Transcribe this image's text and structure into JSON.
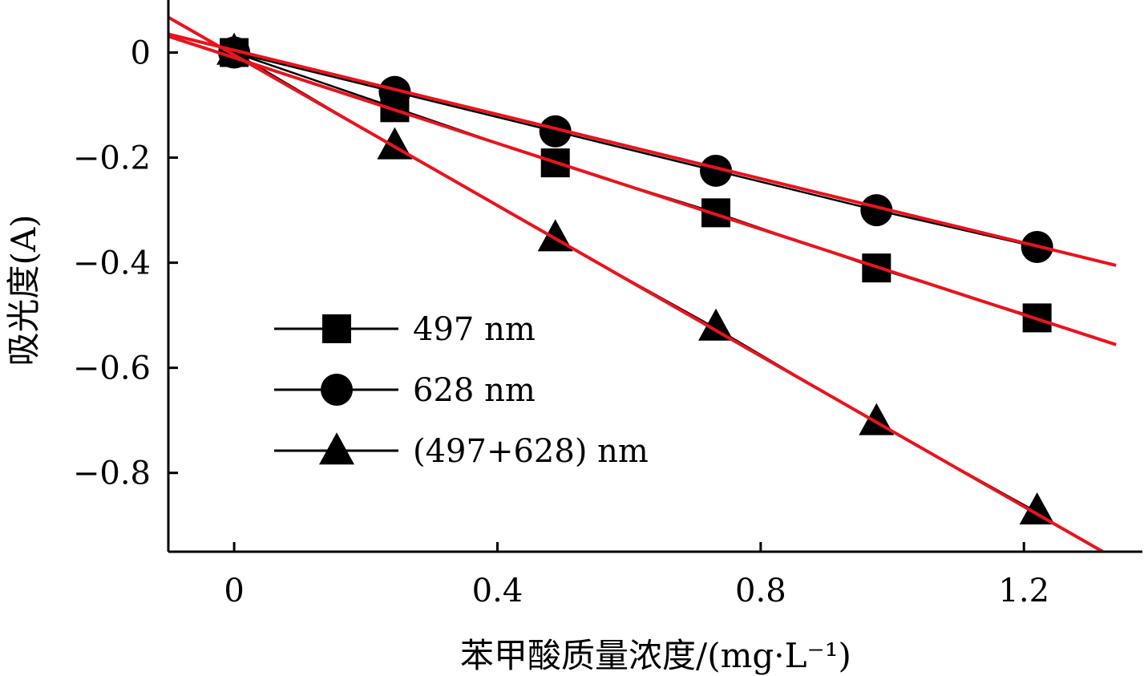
{
  "chart_data": {
    "type": "line",
    "xlabel": "苯甲酸质量浓度/(mg·L⁻¹)",
    "ylabel": "吸光度(A)",
    "xlim": [
      -0.1,
      1.38
    ],
    "ylim": [
      -0.95,
      0.1
    ],
    "x_ticks": [
      0,
      0.4,
      0.8,
      1.2
    ],
    "x_tick_labels": [
      "0",
      "0.4",
      "0.8",
      "1.2"
    ],
    "y_ticks": [
      0,
      -0.2,
      -0.4,
      -0.6,
      -0.8
    ],
    "y_tick_labels": [
      "0",
      "−0.2",
      "−0.4",
      "−0.6",
      "−0.8"
    ],
    "grid": false,
    "legend_position": "lower-left",
    "fit_line_color": "#e8141e",
    "marker_color": "#000000",
    "series": [
      {
        "name": "497 nm",
        "marker": "square",
        "x": [
          0,
          0.244,
          0.488,
          0.732,
          0.976,
          1.22
        ],
        "y": [
          0,
          -0.105,
          -0.21,
          -0.305,
          -0.41,
          -0.505
        ],
        "fit": {
          "x": [
            -0.1,
            1.34
          ],
          "y": [
            0.031,
            -0.556
          ]
        }
      },
      {
        "name": "628 nm",
        "marker": "circle",
        "x": [
          0,
          0.244,
          0.488,
          0.732,
          0.976,
          1.22
        ],
        "y": [
          0,
          -0.075,
          -0.15,
          -0.225,
          -0.3,
          -0.37
        ],
        "fit": {
          "x": [
            -0.1,
            1.34
          ],
          "y": [
            0.035,
            -0.405
          ]
        }
      },
      {
        "name": "(497+628) nm",
        "marker": "triangle",
        "x": [
          0,
          0.244,
          0.488,
          0.732,
          0.976,
          1.22
        ],
        "y": [
          0,
          -0.18,
          -0.355,
          -0.525,
          -0.705,
          -0.875
        ],
        "fit": {
          "x": [
            -0.1,
            1.32
          ],
          "y": [
            0.067,
            -0.95
          ]
        }
      }
    ]
  }
}
